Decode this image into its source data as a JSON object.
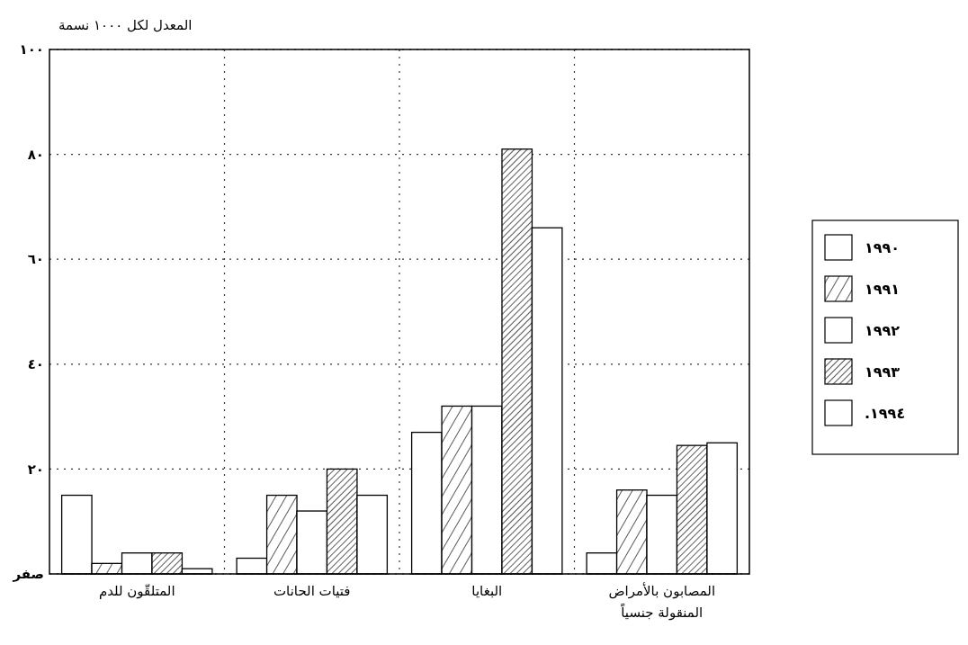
{
  "chart_data": {
    "type": "bar",
    "ylabel": "المعدل لكل ١٠٠٠ نسمة",
    "categories": [
      "المتلقّون للدم",
      "فتيات الحانات",
      "البغايا",
      "المصابون بالأمراض\nالمنقولة جنسياً"
    ],
    "series": [
      {
        "name": "١٩٩٠",
        "color": "#ffffff",
        "values": [
          15,
          3,
          27,
          4
        ]
      },
      {
        "name": "١٩٩١",
        "color": "#000000",
        "values": [
          2,
          15,
          32,
          16
        ]
      },
      {
        "name": "١٩٩٢",
        "color": "#ffffff",
        "values": [
          4,
          12,
          32,
          15
        ]
      },
      {
        "name": "١٩٩٣",
        "color": "#000000",
        "values": [
          4,
          20,
          81,
          24.5
        ]
      },
      {
        "name": "١٩٩٤.",
        "color": "#ffffff",
        "values": [
          1,
          15,
          66,
          25
        ]
      }
    ],
    "ylim": [
      0,
      100
    ],
    "yticks": [
      {
        "value": 0,
        "label": "صفر"
      },
      {
        "value": 20,
        "label": "٢٠"
      },
      {
        "value": 40,
        "label": "٤٠"
      },
      {
        "value": 60,
        "label": "٦٠"
      },
      {
        "value": 80,
        "label": "٨٠"
      },
      {
        "value": 100,
        "label": "١٠٠"
      }
    ],
    "grid": true,
    "legend": "right"
  }
}
